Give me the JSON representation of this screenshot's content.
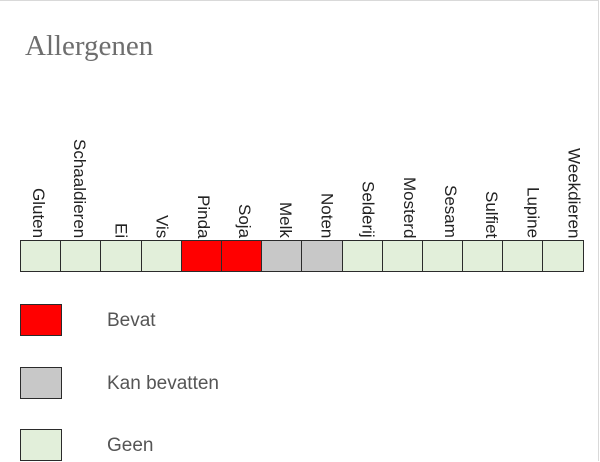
{
  "title": "Allergenen",
  "colors": {
    "bevat": "#ff0000",
    "kan_bevatten": "#c8c8c8",
    "geen": "#e2efda"
  },
  "allergens": [
    {
      "name": "Gluten",
      "status": "geen"
    },
    {
      "name": "Schaaldieren",
      "status": "geen"
    },
    {
      "name": "Ei",
      "status": "geen"
    },
    {
      "name": "Vis",
      "status": "geen"
    },
    {
      "name": "Pinda",
      "status": "bevat"
    },
    {
      "name": "Soja",
      "status": "bevat"
    },
    {
      "name": "Melk",
      "status": "kan_bevatten"
    },
    {
      "name": "Noten",
      "status": "kan_bevatten"
    },
    {
      "name": "Selderij",
      "status": "geen"
    },
    {
      "name": "Mosterd",
      "status": "geen"
    },
    {
      "name": "Sesam",
      "status": "geen"
    },
    {
      "name": "Sulfiet",
      "status": "geen"
    },
    {
      "name": "Lupine",
      "status": "geen"
    },
    {
      "name": "Weekdieren",
      "status": "geen"
    }
  ],
  "legend": [
    {
      "key": "bevat",
      "label": "Bevat"
    },
    {
      "key": "kan_bevatten",
      "label": "Kan bevatten"
    },
    {
      "key": "geen",
      "label": "Geen"
    }
  ]
}
